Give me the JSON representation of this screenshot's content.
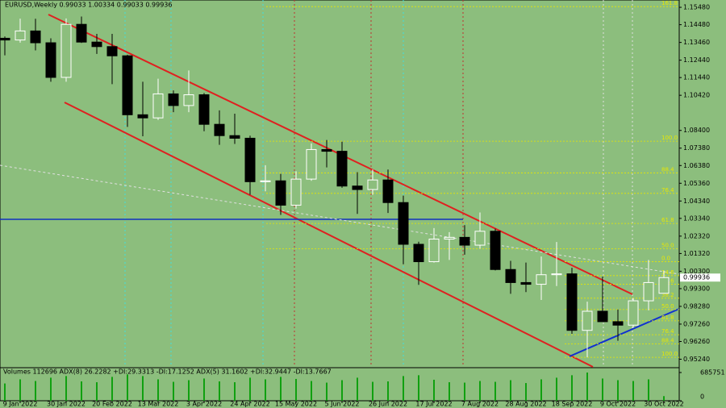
{
  "chart_data": {
    "type": "candlestick",
    "title": "EURUSD,Weekly  0.99033 1.00334 0.99033 0.99936",
    "categories": [
      null,
      "9 Jan 2022",
      null,
      null,
      "30 Jan 2022",
      null,
      null,
      "20 Feb 2022",
      null,
      null,
      "13 Mar 2022",
      null,
      null,
      "3 Apr 2022",
      null,
      null,
      "24 Apr 2022",
      null,
      null,
      "15 May 2022",
      null,
      null,
      "5 Jun 2022",
      null,
      null,
      "26 Jun 2022",
      null,
      null,
      "17 Jul 2022",
      null,
      null,
      "7 Aug 2022",
      null,
      null,
      "28 Aug 2022",
      null,
      null,
      "18 Sep 2022",
      null,
      null,
      "9 Oct 2022",
      null,
      null,
      "30 Oct 2022"
    ],
    "open": [
      1.137,
      1.136,
      1.1412,
      1.1344,
      1.1145,
      1.145,
      1.1348,
      1.1322,
      1.1269,
      1.093,
      1.0912,
      1.105,
      1.0983,
      1.1045,
      1.0875,
      1.081,
      1.0795,
      1.0545,
      1.055,
      1.041,
      1.056,
      1.073,
      1.072,
      1.052,
      1.05,
      1.0555,
      1.0425,
      1.0185,
      1.0085,
      1.0215,
      1.0225,
      1.018,
      1.026,
      1.004,
      0.9965,
      0.9955,
      1.001,
      1.0015,
      0.969,
      0.98,
      0.974,
      0.972,
      0.986,
      0.99033
    ],
    "high": [
      1.138,
      1.1483,
      1.1482,
      1.137,
      1.1484,
      1.1495,
      1.1395,
      1.1395,
      1.1275,
      1.112,
      1.1137,
      1.107,
      1.1185,
      1.1055,
      1.0955,
      1.0936,
      1.081,
      1.064,
      1.059,
      1.0605,
      1.0765,
      1.0785,
      1.0775,
      1.06,
      1.0615,
      1.0615,
      1.0465,
      1.02,
      1.0278,
      1.0255,
      1.0295,
      1.0368,
      1.0275,
      1.009,
      1.008,
      1.0115,
      1.0198,
      1.005,
      0.9855,
      0.9999,
      0.981,
      0.9875,
      1.0095,
      1.00334
    ],
    "low": [
      1.1272,
      1.1345,
      1.13,
      1.112,
      1.112,
      1.1343,
      1.128,
      1.1106,
      1.086,
      1.0806,
      1.09,
      1.0945,
      1.0945,
      1.0835,
      1.0757,
      1.0762,
      1.047,
      1.049,
      1.0354,
      1.039,
      1.055,
      1.0627,
      1.051,
      1.036,
      1.047,
      1.0365,
      1.007,
      0.9952,
      1.008,
      1.0095,
      1.0125,
      1.016,
      1.0035,
      0.99,
      0.991,
      0.9865,
      0.9945,
      0.967,
      0.9535,
      0.974,
      0.963,
      0.9705,
      0.9805,
      0.99033
    ],
    "close": [
      1.136,
      1.1412,
      1.1344,
      1.1145,
      1.145,
      1.1348,
      1.1322,
      1.1269,
      1.093,
      1.0912,
      1.105,
      1.0983,
      1.1045,
      1.0875,
      1.081,
      1.0795,
      1.0545,
      1.055,
      1.041,
      1.056,
      1.073,
      1.072,
      1.052,
      1.05,
      1.0555,
      1.0425,
      1.0185,
      1.0085,
      1.0215,
      1.0225,
      1.018,
      1.026,
      1.004,
      0.9965,
      0.9955,
      1.001,
      1.0015,
      0.969,
      0.98,
      0.974,
      0.972,
      0.986,
      0.9965,
      0.99936
    ],
    "ylim": [
      0.948,
      1.159
    ],
    "yticks": [
      {
        "value": 1.1548,
        "label": "1.15480"
      },
      {
        "value": 1.1448,
        "label": "1.14480"
      },
      {
        "value": 1.1346,
        "label": "1.13460"
      },
      {
        "value": 1.1244,
        "label": "1.12440"
      },
      {
        "value": 1.1144,
        "label": "1.11440"
      },
      {
        "value": 1.1042,
        "label": "1.10420"
      },
      {
        "value": 1.084,
        "label": "1.08400"
      },
      {
        "value": 1.0738,
        "label": "1.07380"
      },
      {
        "value": 1.0638,
        "label": "1.06380"
      },
      {
        "value": 1.0536,
        "label": "1.05360"
      },
      {
        "value": 1.0434,
        "label": "1.04340"
      },
      {
        "value": 1.0334,
        "label": "1.03340"
      },
      {
        "value": 1.0232,
        "label": "1.02320"
      },
      {
        "value": 1.0132,
        "label": "1.01320"
      },
      {
        "value": 1.003,
        "label": "1.00300"
      },
      {
        "value": 0.993,
        "label": "0.99300"
      },
      {
        "value": 0.9828,
        "label": "0.98280"
      },
      {
        "value": 0.9726,
        "label": "0.97260"
      },
      {
        "value": 0.9626,
        "label": "0.96260"
      },
      {
        "value": 0.9524,
        "label": "0.95240"
      }
    ],
    "last_price_label": "0.99936",
    "fib_levels": [
      {
        "label": "161.8",
        "value": 1.1552
      },
      {
        "label": "100.0",
        "value": 1.0778
      },
      {
        "label": "88.4",
        "value": 1.0595
      },
      {
        "label": "76.4",
        "value": 1.0478
      },
      {
        "label": "61.8",
        "value": 1.0305
      },
      {
        "label": "50.0",
        "value": 1.016
      },
      {
        "label": "0.0",
        "value": 1.0085
      },
      {
        "label": "14.6",
        "value": 1.0005
      },
      {
        "label": "23.6",
        "value": 0.9955
      },
      {
        "label": "38.2",
        "value": 0.9875
      },
      {
        "label": "50.0",
        "value": 0.981
      },
      {
        "label": "61.8",
        "value": 0.9745
      },
      {
        "label": "76.4",
        "value": 0.9665
      },
      {
        "label": "88.4",
        "value": 0.9612
      },
      {
        "label": "100.0",
        "value": 0.9535
      }
    ],
    "volume_title": "Volumes 112696  ADX(8) 26.2282 +DI:29.3313 -DI:17.1252  ADX(5) 31.1602 +DI:32.9447 -DI:13.7667",
    "volumes": [
      420000,
      520000,
      480000,
      560000,
      600000,
      470000,
      450000,
      580000,
      640000,
      600000,
      520000,
      460000,
      500000,
      540000,
      470000,
      450000,
      560000,
      520000,
      580000,
      530000,
      480000,
      440000,
      500000,
      560000,
      460000,
      470000,
      600000,
      620000,
      510000,
      450000,
      440000,
      480000,
      460000,
      500000,
      430000,
      520000,
      560000,
      620000,
      685751,
      540000,
      500000,
      480000,
      520000,
      112696
    ],
    "vlim": [
      0,
      685751
    ],
    "vticks": [
      0,
      685751
    ]
  }
}
